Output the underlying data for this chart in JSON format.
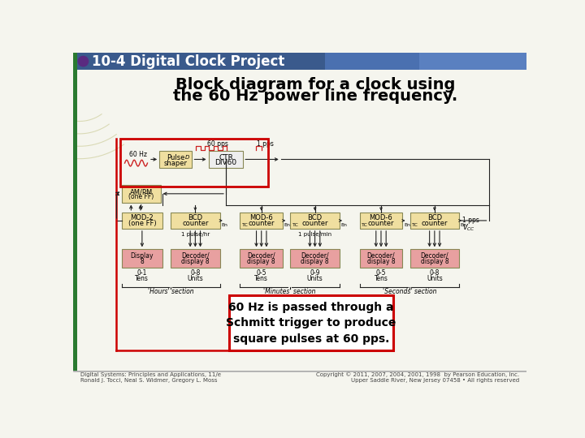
{
  "title_bar_text": "10-4 Digital Clock Project",
  "title_bar_bg": "#3a5a8c",
  "title_bar_text_color": "#ffffff",
  "slide_bg": "#f5f5ee",
  "heading_line1": "Block diagram for a clock using",
  "heading_line2": "the 60 Hz power line frequency.",
  "heading_color": "#000000",
  "callout_text": "60 Hz is passed through a\nSchmitt trigger to produce\nsquare pulses at 60 pps.",
  "callout_border": "#cc0000",
  "callout_bg": "#ffffff",
  "box_fill": "#f0dfa0",
  "box_fill_pink": "#e8a0a0",
  "box_border": "#888855",
  "red_border": "#cc0000",
  "footer_left": "Digital Systems: Principles and Applications, 11/e\nRonald J. Tocci, Neal S. Widmer, Gregory L. Moss",
  "footer_right": "Copyright © 2011, 2007, 2004, 2001, 1998  by Pearson Education, Inc.\nUpper Saddle River, New Jersey 07458 • All rights reserved",
  "footer_color": "#444444",
  "arrow_color": "#222222",
  "line_color": "#222222",
  "green_bar": "#2a7a30",
  "purple_dot": "#5a2a80",
  "deco_circle_color": "#c8c890"
}
